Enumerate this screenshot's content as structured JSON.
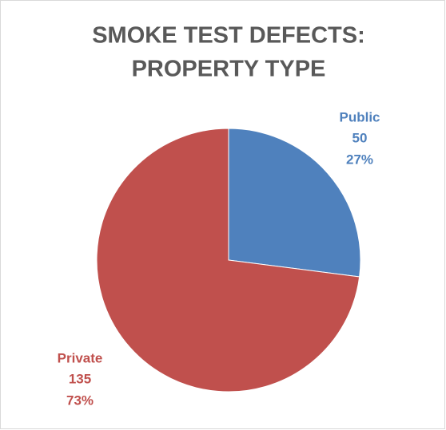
{
  "chart_data": {
    "type": "pie",
    "title": [
      "SMOKE TEST DEFECTS:",
      "PROPERTY TYPE"
    ],
    "categories": [
      "Public",
      "Private"
    ],
    "values": [
      50,
      135
    ],
    "percent_labels": [
      "27%",
      "73%"
    ],
    "colors": [
      "#4f81bd",
      "#c0504d"
    ]
  }
}
